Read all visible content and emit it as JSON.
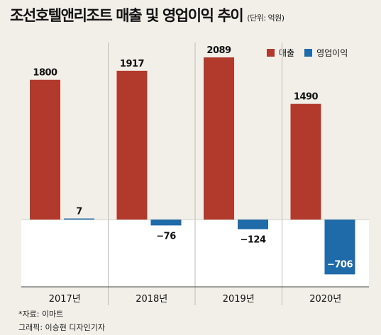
{
  "title": "조선호텔앤리조트 매출 및 영업이익 추이",
  "unit_note": "(단위: 억원)",
  "legend": [
    {
      "label": "매출",
      "color": "#b23a2c"
    },
    {
      "label": "영업이익",
      "color": "#1f6aa8"
    }
  ],
  "chart_data": {
    "type": "bar",
    "categories": [
      "2017년",
      "2018년",
      "2019년",
      "2020년"
    ],
    "series": [
      {
        "name": "매출",
        "values": [
          1800,
          1917,
          2089,
          1490
        ],
        "labels": [
          "1800",
          "1917",
          "2089",
          "1490"
        ],
        "color": "#b23a2c"
      },
      {
        "name": "영업이익",
        "values": [
          7,
          -76,
          -124,
          -706
        ],
        "labels": [
          "7",
          "−76",
          "−124",
          "−706"
        ],
        "color": "#1f6aa8"
      }
    ],
    "legend_position": "top-right"
  },
  "footer": {
    "source": "*자료: 이마트",
    "credit": "그래픽: 이승현 디자인기자"
  }
}
